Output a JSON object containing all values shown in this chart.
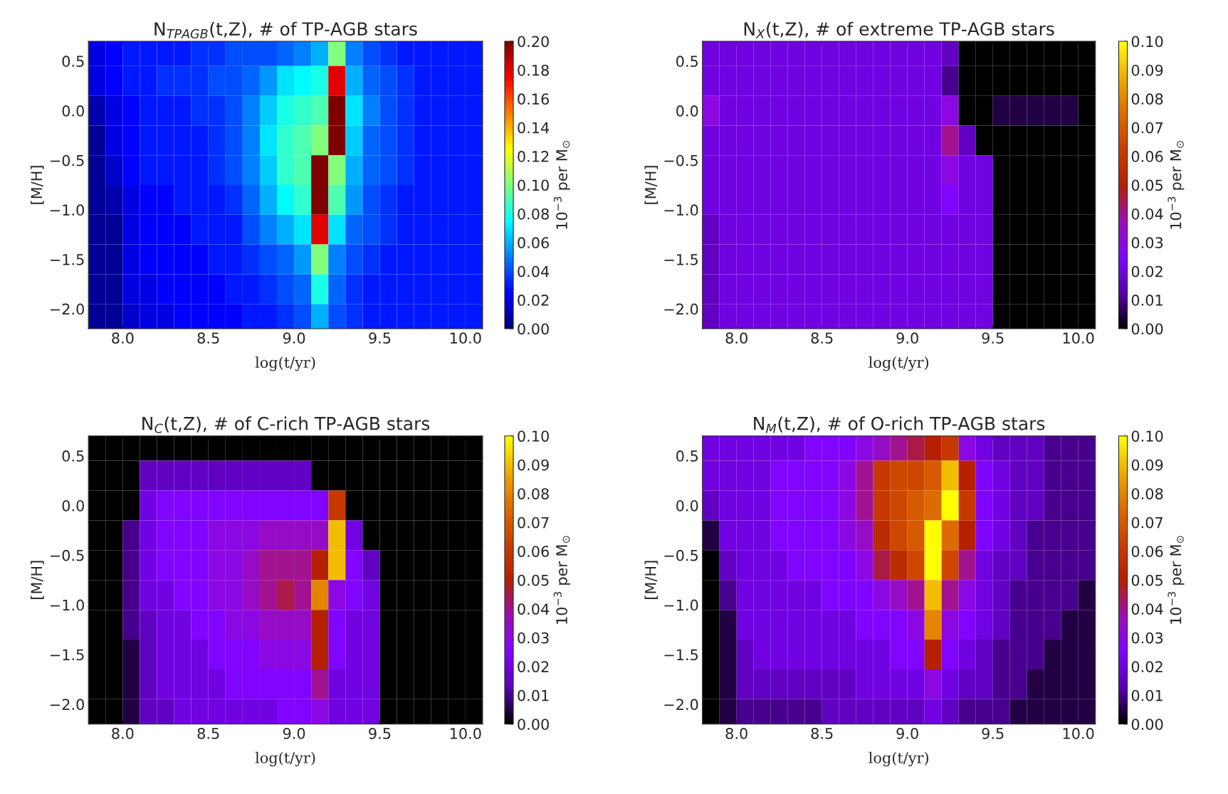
{
  "chart_data": [
    {
      "type": "heatmap",
      "title": "N$_{TPAGB}$(t,Z), # of TP-AGB stars",
      "xlabel": "log(t/yr)",
      "ylabel": "[M/H]",
      "clabel": "10$^{−3}$ per M$_{⊙}$",
      "x": [
        7.85,
        7.95,
        8.05,
        8.15,
        8.25,
        8.35,
        8.45,
        8.55,
        8.65,
        8.75,
        8.85,
        8.95,
        9.05,
        9.15,
        9.25,
        9.35,
        9.45,
        9.55,
        9.65,
        9.75,
        9.85,
        9.95,
        10.05
      ],
      "y": [
        0.6,
        0.3,
        0.0,
        -0.3,
        -0.6,
        -0.9,
        -1.2,
        -1.5,
        -1.8,
        -2.1
      ],
      "colors": [
        "#00007f",
        "#0000ff",
        "#007fff",
        "#00ffff",
        "#7fff7f",
        "#ffff00",
        "#ff7f00",
        "#ff0000",
        "#7f0000"
      ],
      "cells": [
        [
          0.02,
          0.025,
          0.03,
          0.03,
          0.03,
          0.03,
          0.035,
          0.035,
          0.04,
          0.04,
          0.04,
          0.045,
          0.05,
          0.06,
          0.1,
          0.05,
          0.04,
          0.035,
          0.03,
          0.03,
          0.03,
          0.03,
          0.03
        ],
        [
          0.02,
          0.025,
          0.03,
          0.03,
          0.035,
          0.035,
          0.035,
          0.04,
          0.04,
          0.045,
          0.055,
          0.07,
          0.075,
          0.08,
          0.18,
          0.06,
          0.045,
          0.04,
          0.035,
          0.03,
          0.03,
          0.03,
          0.03
        ],
        [
          0.01,
          0.02,
          0.025,
          0.03,
          0.03,
          0.03,
          0.035,
          0.035,
          0.04,
          0.05,
          0.065,
          0.08,
          0.085,
          0.09,
          0.2,
          0.07,
          0.05,
          0.04,
          0.035,
          0.03,
          0.03,
          0.03,
          0.03
        ],
        [
          0.005,
          0.02,
          0.025,
          0.03,
          0.03,
          0.03,
          0.03,
          0.035,
          0.04,
          0.05,
          0.07,
          0.085,
          0.09,
          0.1,
          0.2,
          0.065,
          0.045,
          0.04,
          0.035,
          0.03,
          0.03,
          0.03,
          0.03
        ],
        [
          0.005,
          0.015,
          0.025,
          0.03,
          0.03,
          0.03,
          0.03,
          0.035,
          0.04,
          0.05,
          0.065,
          0.085,
          0.09,
          0.2,
          0.1,
          0.06,
          0.045,
          0.04,
          0.035,
          0.03,
          0.03,
          0.03,
          0.03
        ],
        [
          0.005,
          0.01,
          0.02,
          0.025,
          0.025,
          0.03,
          0.03,
          0.03,
          0.035,
          0.045,
          0.06,
          0.075,
          0.085,
          0.2,
          0.09,
          0.055,
          0.04,
          0.035,
          0.03,
          0.03,
          0.03,
          0.03,
          0.03
        ],
        [
          0.005,
          0.005,
          0.02,
          0.025,
          0.025,
          0.025,
          0.03,
          0.03,
          0.03,
          0.04,
          0.05,
          0.06,
          0.07,
          0.18,
          0.07,
          0.045,
          0.04,
          0.035,
          0.03,
          0.03,
          0.03,
          0.03,
          0.03
        ],
        [
          0.005,
          0.005,
          0.02,
          0.025,
          0.025,
          0.025,
          0.025,
          0.03,
          0.03,
          0.035,
          0.04,
          0.045,
          0.055,
          0.1,
          0.05,
          0.04,
          0.035,
          0.03,
          0.03,
          0.03,
          0.03,
          0.03,
          0.03
        ],
        [
          0.005,
          0.005,
          0.02,
          0.02,
          0.025,
          0.025,
          0.025,
          0.025,
          0.03,
          0.03,
          0.035,
          0.04,
          0.045,
          0.08,
          0.045,
          0.035,
          0.03,
          0.03,
          0.03,
          0.03,
          0.03,
          0.03,
          0.03
        ],
        [
          0.005,
          0.005,
          0.015,
          0.02,
          0.02,
          0.025,
          0.025,
          0.025,
          0.025,
          0.03,
          0.03,
          0.035,
          0.04,
          0.06,
          0.04,
          0.035,
          0.03,
          0.03,
          0.03,
          0.03,
          0.03,
          0.03,
          0.03
        ]
      ],
      "clim": [
        0,
        0.2
      ],
      "cticks": [
        {
          "value": 0,
          "label": "0.00"
        },
        {
          "value": 0.02,
          "label": "0.02"
        },
        {
          "value": 0.04,
          "label": "0.04"
        },
        {
          "value": 0.06,
          "label": "0.06"
        },
        {
          "value": 0.08,
          "label": "0.08"
        },
        {
          "value": 0.1,
          "label": "0.10"
        },
        {
          "value": 0.12,
          "label": "0.12"
        },
        {
          "value": 0.14,
          "label": "0.14"
        },
        {
          "value": 0.16,
          "label": "0.16"
        },
        {
          "value": 0.18,
          "label": "0.18"
        },
        {
          "value": 0.2,
          "label": "0.20"
        }
      ],
      "xlim": [
        7.8,
        10.1
      ],
      "ylim": [
        -2.2,
        0.7
      ],
      "xticks": [
        {
          "value": 8,
          "label": "8.0"
        },
        {
          "value": 8.5,
          "label": "8.5"
        },
        {
          "value": 9,
          "label": "9.0"
        },
        {
          "value": 9.5,
          "label": "9.5"
        },
        {
          "value": 10,
          "label": "10.0"
        }
      ],
      "yticks": [
        {
          "value": -2,
          "label": "−2.0"
        },
        {
          "value": -1.5,
          "label": "−1.5"
        },
        {
          "value": -1,
          "label": "−1.0"
        },
        {
          "value": -0.5,
          "label": "−0.5"
        },
        {
          "value": 0,
          "label": "0.0"
        },
        {
          "value": 0.5,
          "label": "0.5"
        }
      ]
    },
    {
      "type": "heatmap",
      "title": "N$_{X}$(t,Z), # of extreme TP-AGB stars",
      "xlabel": "log(t/yr)",
      "ylabel": "[M/H]",
      "clabel": "10$^{−3}$ per M$_{⊙}$",
      "x": [
        7.85,
        7.95,
        8.05,
        8.15,
        8.25,
        8.35,
        8.45,
        8.55,
        8.65,
        8.75,
        8.85,
        8.95,
        9.05,
        9.15,
        9.25,
        9.35,
        9.45,
        9.55,
        9.65,
        9.75,
        9.85,
        9.95,
        10.05
      ],
      "y": [
        0.6,
        0.3,
        0.0,
        -0.3,
        -0.6,
        -0.9,
        -1.2,
        -1.5,
        -1.8,
        -2.1
      ],
      "colors": [
        "#000000",
        "#5a00b4",
        "#8004ff",
        "#9c0eb4",
        "#b42000",
        "#c93e00",
        "#dd6b00",
        "#eeab00",
        "#ffff00"
      ],
      "cells": [
        [
          0.02,
          0.02,
          0.02,
          0.02,
          0.02,
          0.02,
          0.02,
          0.02,
          0.02,
          0.02,
          0.02,
          0.02,
          0.02,
          0.02,
          0.015,
          0,
          0,
          0,
          0,
          0,
          0,
          0,
          0
        ],
        [
          0.02,
          0.02,
          0.02,
          0.02,
          0.02,
          0.02,
          0.02,
          0.02,
          0.02,
          0.02,
          0.02,
          0.02,
          0.02,
          0.02,
          0.01,
          0,
          0,
          0,
          0,
          0,
          0,
          0,
          0
        ],
        [
          0.03,
          0.02,
          0.02,
          0.02,
          0.02,
          0.02,
          0.02,
          0.02,
          0.02,
          0.02,
          0.02,
          0.02,
          0.02,
          0.02,
          0.03,
          0,
          0,
          0.005,
          0.005,
          0.005,
          0.005,
          0.005,
          0
        ],
        [
          0.02,
          0.02,
          0.02,
          0.02,
          0.02,
          0.02,
          0.02,
          0.02,
          0.02,
          0.02,
          0.02,
          0.02,
          0.02,
          0.02,
          0.04,
          0.015,
          0,
          0,
          0,
          0,
          0,
          0,
          0
        ],
        [
          0.02,
          0.02,
          0.02,
          0.02,
          0.02,
          0.02,
          0.02,
          0.02,
          0.02,
          0.02,
          0.02,
          0.02,
          0.02,
          0.02,
          0.03,
          0.02,
          0.02,
          0,
          0,
          0,
          0,
          0,
          0
        ],
        [
          0.02,
          0.02,
          0.02,
          0.02,
          0.02,
          0.02,
          0.02,
          0.02,
          0.02,
          0.02,
          0.02,
          0.02,
          0.02,
          0.02,
          0.025,
          0.02,
          0.02,
          0,
          0,
          0,
          0,
          0,
          0
        ],
        [
          0.015,
          0.02,
          0.02,
          0.02,
          0.02,
          0.02,
          0.02,
          0.02,
          0.02,
          0.02,
          0.02,
          0.02,
          0.02,
          0.02,
          0.02,
          0.02,
          0.02,
          0,
          0,
          0,
          0,
          0,
          0
        ],
        [
          0.015,
          0.02,
          0.02,
          0.02,
          0.02,
          0.02,
          0.02,
          0.02,
          0.02,
          0.02,
          0.02,
          0.02,
          0.02,
          0.02,
          0.02,
          0.02,
          0.02,
          0,
          0,
          0,
          0,
          0,
          0
        ],
        [
          0.015,
          0.02,
          0.02,
          0.02,
          0.02,
          0.02,
          0.02,
          0.02,
          0.02,
          0.02,
          0.02,
          0.02,
          0.02,
          0.02,
          0.02,
          0.02,
          0.02,
          0,
          0,
          0,
          0,
          0,
          0
        ],
        [
          0.015,
          0.02,
          0.02,
          0.02,
          0.02,
          0.02,
          0.02,
          0.02,
          0.02,
          0.02,
          0.02,
          0.02,
          0.02,
          0.02,
          0.02,
          0.02,
          0.02,
          0,
          0,
          0,
          0,
          0,
          0
        ]
      ],
      "clim": [
        0,
        0.1
      ],
      "cticks": [
        {
          "value": 0,
          "label": "0.00"
        },
        {
          "value": 0.01,
          "label": "0.01"
        },
        {
          "value": 0.02,
          "label": "0.02"
        },
        {
          "value": 0.03,
          "label": "0.03"
        },
        {
          "value": 0.04,
          "label": "0.04"
        },
        {
          "value": 0.05,
          "label": "0.05"
        },
        {
          "value": 0.06,
          "label": "0.06"
        },
        {
          "value": 0.07,
          "label": "0.07"
        },
        {
          "value": 0.08,
          "label": "0.08"
        },
        {
          "value": 0.09,
          "label": "0.09"
        },
        {
          "value": 0.1,
          "label": "0.10"
        }
      ],
      "xlim": [
        7.8,
        10.1
      ],
      "ylim": [
        -2.2,
        0.7
      ],
      "xticks": [
        {
          "value": 8,
          "label": "8.0"
        },
        {
          "value": 8.5,
          "label": "8.5"
        },
        {
          "value": 9,
          "label": "9.0"
        },
        {
          "value": 9.5,
          "label": "9.5"
        },
        {
          "value": 10,
          "label": "10.0"
        }
      ],
      "yticks": [
        {
          "value": -2,
          "label": "−2.0"
        },
        {
          "value": -1.5,
          "label": "−1.5"
        },
        {
          "value": -1,
          "label": "−1.0"
        },
        {
          "value": -0.5,
          "label": "−0.5"
        },
        {
          "value": 0,
          "label": "0.0"
        },
        {
          "value": 0.5,
          "label": "0.5"
        }
      ]
    },
    {
      "type": "heatmap",
      "title": "N$_{C}$(t,Z), # of C-rich TP-AGB stars",
      "xlabel": "log(t/yr)",
      "ylabel": "[M/H]",
      "clabel": "10$^{−3}$ per M$_{⊙}$",
      "x": [
        7.85,
        7.95,
        8.05,
        8.15,
        8.25,
        8.35,
        8.45,
        8.55,
        8.65,
        8.75,
        8.85,
        8.95,
        9.05,
        9.15,
        9.25,
        9.35,
        9.45,
        9.55,
        9.65,
        9.75,
        9.85,
        9.95,
        10.05
      ],
      "y": [
        0.6,
        0.3,
        0.0,
        -0.3,
        -0.6,
        -0.9,
        -1.2,
        -1.5,
        -1.8,
        -2.1
      ],
      "colors": [
        "#000000",
        "#5a00b4",
        "#8004ff",
        "#9c0eb4",
        "#b42000",
        "#c93e00",
        "#dd6b00",
        "#eeab00",
        "#ffff00"
      ],
      "cells": [
        [
          0,
          0,
          0,
          0,
          0,
          0,
          0,
          0,
          0,
          0,
          0,
          0,
          0,
          0,
          0,
          0,
          0,
          0,
          0,
          0,
          0,
          0,
          0
        ],
        [
          0,
          0,
          0,
          0.015,
          0.015,
          0.015,
          0.015,
          0.015,
          0.015,
          0.015,
          0.015,
          0.015,
          0.015,
          0,
          0,
          0,
          0,
          0,
          0,
          0,
          0,
          0,
          0
        ],
        [
          0,
          0,
          0,
          0.02,
          0.025,
          0.025,
          0.025,
          0.025,
          0.025,
          0.025,
          0.025,
          0.025,
          0.025,
          0.025,
          0.06,
          0,
          0,
          0,
          0,
          0,
          0,
          0,
          0
        ],
        [
          0,
          0,
          0.01,
          0.02,
          0.025,
          0.025,
          0.025,
          0.03,
          0.03,
          0.03,
          0.035,
          0.035,
          0.035,
          0.035,
          0.09,
          0.02,
          0,
          0,
          0,
          0,
          0,
          0,
          0
        ],
        [
          0,
          0,
          0.01,
          0.02,
          0.025,
          0.025,
          0.025,
          0.03,
          0.03,
          0.035,
          0.04,
          0.04,
          0.04,
          0.05,
          0.09,
          0.025,
          0.015,
          0,
          0,
          0,
          0,
          0,
          0
        ],
        [
          0,
          0,
          0.01,
          0.02,
          0.02,
          0.025,
          0.025,
          0.03,
          0.03,
          0.035,
          0.04,
          0.045,
          0.04,
          0.08,
          0.03,
          0.025,
          0.02,
          0,
          0,
          0,
          0,
          0,
          0
        ],
        [
          0,
          0,
          0.01,
          0.015,
          0.02,
          0.02,
          0.025,
          0.025,
          0.03,
          0.03,
          0.035,
          0.035,
          0.035,
          0.05,
          0.025,
          0.02,
          0.02,
          0,
          0,
          0,
          0,
          0,
          0
        ],
        [
          0,
          0,
          0.005,
          0.015,
          0.02,
          0.02,
          0.02,
          0.025,
          0.025,
          0.025,
          0.03,
          0.03,
          0.03,
          0.05,
          0.025,
          0.02,
          0.02,
          0,
          0,
          0,
          0,
          0,
          0
        ],
        [
          0,
          0,
          0.005,
          0.015,
          0.02,
          0.02,
          0.02,
          0.02,
          0.025,
          0.025,
          0.025,
          0.025,
          0.025,
          0.04,
          0.02,
          0.02,
          0.02,
          0,
          0,
          0,
          0,
          0,
          0
        ],
        [
          0,
          0,
          0.005,
          0.015,
          0.015,
          0.02,
          0.02,
          0.02,
          0.02,
          0.02,
          0.02,
          0.025,
          0.025,
          0.03,
          0.02,
          0.02,
          0.02,
          0,
          0,
          0,
          0,
          0,
          0
        ]
      ],
      "clim": [
        0,
        0.1
      ],
      "cticks": [
        {
          "value": 0,
          "label": "0.00"
        },
        {
          "value": 0.01,
          "label": "0.01"
        },
        {
          "value": 0.02,
          "label": "0.02"
        },
        {
          "value": 0.03,
          "label": "0.03"
        },
        {
          "value": 0.04,
          "label": "0.04"
        },
        {
          "value": 0.05,
          "label": "0.05"
        },
        {
          "value": 0.06,
          "label": "0.06"
        },
        {
          "value": 0.07,
          "label": "0.07"
        },
        {
          "value": 0.08,
          "label": "0.08"
        },
        {
          "value": 0.09,
          "label": "0.09"
        },
        {
          "value": 0.1,
          "label": "0.10"
        }
      ],
      "xlim": [
        7.8,
        10.1
      ],
      "ylim": [
        -2.2,
        0.7
      ],
      "xticks": [
        {
          "value": 8,
          "label": "8.0"
        },
        {
          "value": 8.5,
          "label": "8.5"
        },
        {
          "value": 9,
          "label": "9.0"
        },
        {
          "value": 9.5,
          "label": "9.5"
        },
        {
          "value": 10,
          "label": "10.0"
        }
      ],
      "yticks": [
        {
          "value": -2,
          "label": "−2.0"
        },
        {
          "value": -1.5,
          "label": "−1.5"
        },
        {
          "value": -1,
          "label": "−1.0"
        },
        {
          "value": -0.5,
          "label": "−0.5"
        },
        {
          "value": 0,
          "label": "0.0"
        },
        {
          "value": 0.5,
          "label": "0.5"
        }
      ]
    },
    {
      "type": "heatmap",
      "title": "N$_{M}$(t,Z), # of O-rich TP-AGB stars",
      "xlabel": "log(t/yr)",
      "ylabel": "[M/H]",
      "clabel": "10$^{−3}$ per M$_{⊙}$",
      "x": [
        7.85,
        7.95,
        8.05,
        8.15,
        8.25,
        8.35,
        8.45,
        8.55,
        8.65,
        8.75,
        8.85,
        8.95,
        9.05,
        9.15,
        9.25,
        9.35,
        9.45,
        9.55,
        9.65,
        9.75,
        9.85,
        9.95,
        10.05
      ],
      "y": [
        0.6,
        0.3,
        0.0,
        -0.3,
        -0.6,
        -0.9,
        -1.2,
        -1.5,
        -1.8,
        -2.1
      ],
      "colors": [
        "#000000",
        "#5a00b4",
        "#8004ff",
        "#9c0eb4",
        "#b42000",
        "#c93e00",
        "#dd6b00",
        "#eeab00",
        "#ffff00"
      ],
      "cells": [
        [
          0.02,
          0.02,
          0.02,
          0.02,
          0.02,
          0.02,
          0.025,
          0.025,
          0.025,
          0.03,
          0.035,
          0.04,
          0.045,
          0.05,
          0.06,
          0.03,
          0.02,
          0.015,
          0.015,
          0.015,
          0.01,
          0.01,
          0.01
        ],
        [
          0.02,
          0.02,
          0.02,
          0.02,
          0.025,
          0.025,
          0.025,
          0.025,
          0.03,
          0.04,
          0.06,
          0.065,
          0.065,
          0.07,
          0.09,
          0.05,
          0.025,
          0.02,
          0.015,
          0.015,
          0.01,
          0.01,
          0.01
        ],
        [
          0.015,
          0.02,
          0.02,
          0.02,
          0.025,
          0.025,
          0.025,
          0.025,
          0.03,
          0.04,
          0.06,
          0.065,
          0.07,
          0.075,
          0.1,
          0.06,
          0.025,
          0.02,
          0.015,
          0.015,
          0.01,
          0.01,
          0.01
        ],
        [
          0.005,
          0.02,
          0.02,
          0.02,
          0.025,
          0.025,
          0.025,
          0.025,
          0.03,
          0.035,
          0.055,
          0.065,
          0.07,
          0.1,
          0.075,
          0.05,
          0.025,
          0.02,
          0.015,
          0.01,
          0.01,
          0.01,
          0.01
        ],
        [
          0,
          0.015,
          0.02,
          0.02,
          0.02,
          0.025,
          0.025,
          0.025,
          0.025,
          0.03,
          0.045,
          0.055,
          0.065,
          0.1,
          0.065,
          0.04,
          0.02,
          0.015,
          0.015,
          0.01,
          0.01,
          0.01,
          0.01
        ],
        [
          0,
          0.01,
          0.02,
          0.02,
          0.02,
          0.02,
          0.02,
          0.025,
          0.025,
          0.025,
          0.03,
          0.035,
          0.04,
          0.09,
          0.04,
          0.03,
          0.02,
          0.015,
          0.01,
          0.01,
          0.01,
          0.01,
          0.005
        ],
        [
          0,
          0.005,
          0.02,
          0.02,
          0.02,
          0.02,
          0.02,
          0.02,
          0.02,
          0.025,
          0.025,
          0.025,
          0.03,
          0.08,
          0.03,
          0.025,
          0.02,
          0.015,
          0.01,
          0.01,
          0.01,
          0.005,
          0.005
        ],
        [
          0,
          0.005,
          0.015,
          0.02,
          0.02,
          0.02,
          0.02,
          0.02,
          0.02,
          0.02,
          0.02,
          0.025,
          0.025,
          0.05,
          0.025,
          0.02,
          0.015,
          0.01,
          0.01,
          0.01,
          0.005,
          0.005,
          0.005
        ],
        [
          0,
          0.005,
          0.015,
          0.015,
          0.015,
          0.015,
          0.015,
          0.015,
          0.015,
          0.02,
          0.02,
          0.02,
          0.02,
          0.03,
          0.02,
          0.015,
          0.015,
          0.01,
          0.01,
          0.005,
          0.005,
          0.005,
          0.005
        ],
        [
          0,
          0.005,
          0.01,
          0.01,
          0.01,
          0.01,
          0.01,
          0.015,
          0.015,
          0.015,
          0.015,
          0.015,
          0.015,
          0.02,
          0.015,
          0.01,
          0.01,
          0.01,
          0.005,
          0.005,
          0.005,
          0.005,
          0.005
        ]
      ],
      "clim": [
        0,
        0.1
      ],
      "cticks": [
        {
          "value": 0,
          "label": "0.00"
        },
        {
          "value": 0.01,
          "label": "0.01"
        },
        {
          "value": 0.02,
          "label": "0.02"
        },
        {
          "value": 0.03,
          "label": "0.03"
        },
        {
          "value": 0.04,
          "label": "0.04"
        },
        {
          "value": 0.05,
          "label": "0.05"
        },
        {
          "value": 0.06,
          "label": "0.06"
        },
        {
          "value": 0.07,
          "label": "0.07"
        },
        {
          "value": 0.08,
          "label": "0.08"
        },
        {
          "value": 0.09,
          "label": "0.09"
        },
        {
          "value": 0.1,
          "label": "0.10"
        }
      ],
      "xlim": [
        7.8,
        10.1
      ],
      "ylim": [
        -2.2,
        0.7
      ],
      "xticks": [
        {
          "value": 8,
          "label": "8.0"
        },
        {
          "value": 8.5,
          "label": "8.5"
        },
        {
          "value": 9,
          "label": "9.0"
        },
        {
          "value": 9.5,
          "label": "9.5"
        },
        {
          "value": 10,
          "label": "10.0"
        }
      ],
      "yticks": [
        {
          "value": -2,
          "label": "−2.0"
        },
        {
          "value": -1.5,
          "label": "−1.5"
        },
        {
          "value": -1,
          "label": "−1.0"
        },
        {
          "value": -0.5,
          "label": "−0.5"
        },
        {
          "value": 0,
          "label": "0.0"
        },
        {
          "value": 0.5,
          "label": "0.5"
        }
      ]
    }
  ]
}
